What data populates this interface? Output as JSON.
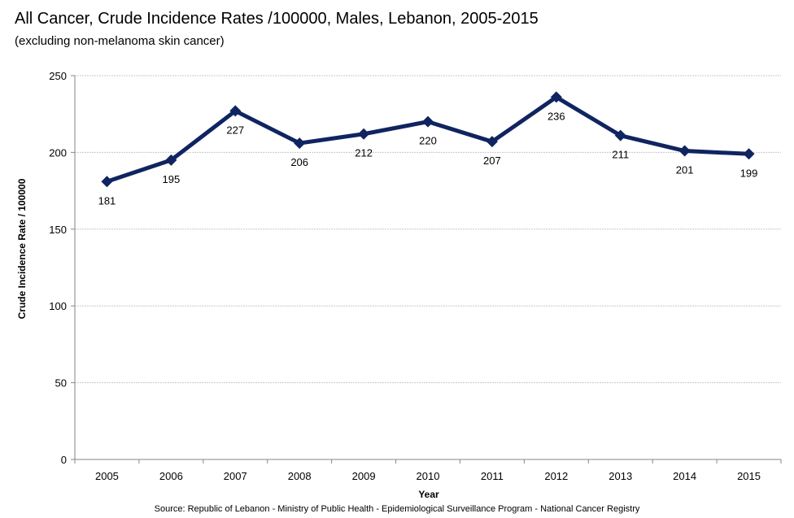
{
  "chart_data": {
    "type": "line",
    "title": "All Cancer, Crude Incidence Rates /100000, Males, Lebanon, 2005-2015",
    "subtitle": "(excluding non-melanoma skin cancer)",
    "xlabel": "Year",
    "ylabel": "Crude Incidence Rate / 100000",
    "categories": [
      "2005",
      "2006",
      "2007",
      "2008",
      "2009",
      "2010",
      "2011",
      "2012",
      "2013",
      "2014",
      "2015"
    ],
    "series": [
      {
        "name": "Males",
        "values": [
          181,
          195,
          227,
          206,
          212,
          220,
          207,
          236,
          211,
          201,
          199
        ],
        "color": "#0f2460",
        "marker": "diamond"
      }
    ],
    "data_labels": [
      "181",
      "195",
      "227",
      "206",
      "212",
      "220",
      "207",
      "236",
      "211",
      "201",
      "199"
    ],
    "ylim": [
      0,
      250
    ],
    "yticks": [
      0,
      50,
      100,
      150,
      200,
      250
    ],
    "ytick_labels": [
      "0",
      "50",
      "100",
      "150",
      "200",
      "250"
    ],
    "grid": true,
    "legend": "none",
    "source": "Source:  Republic of Lebanon - Ministry of Public Health - Epidemiological Surveillance Program - National Cancer Registry"
  }
}
